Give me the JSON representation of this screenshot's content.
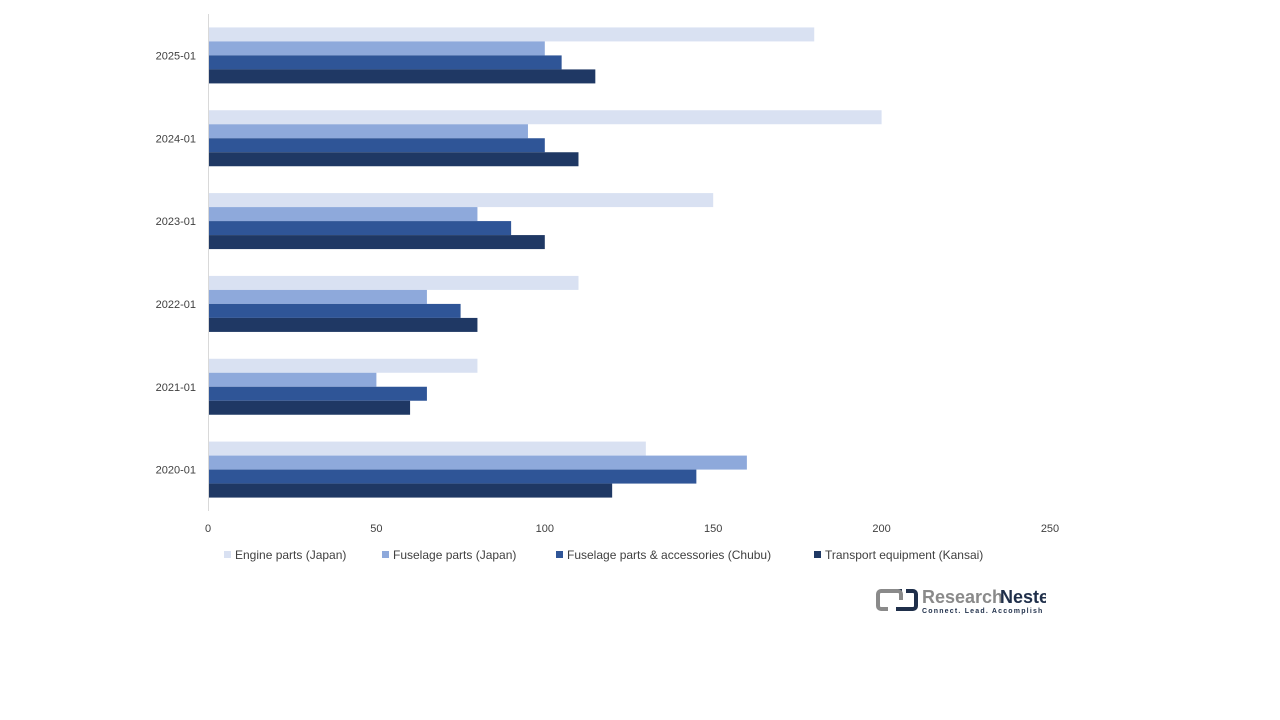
{
  "chart_data": {
    "type": "bar",
    "orientation": "horizontal",
    "categories": [
      "2020-01",
      "2021-01",
      "2022-01",
      "2023-01",
      "2024-01",
      "2025-01"
    ],
    "series": [
      {
        "name": "Engine parts (Japan)",
        "color": "#D9E1F2",
        "values": [
          130,
          80,
          110,
          150,
          200,
          180
        ]
      },
      {
        "name": "Fuselage parts (Japan)",
        "color": "#8EA9DB",
        "values": [
          160,
          50,
          65,
          80,
          95,
          100
        ]
      },
      {
        "name": "Fuselage parts & accessories (Chubu)",
        "color": "#2F5597",
        "values": [
          145,
          65,
          75,
          90,
          100,
          105
        ]
      },
      {
        "name": "Transport equipment (Kansai)",
        "color": "#1F3864",
        "values": [
          120,
          60,
          80,
          100,
          110,
          115
        ]
      }
    ],
    "xlim": [
      0,
      250
    ],
    "xticks": [
      "0",
      "50",
      "100",
      "150",
      "200",
      "250"
    ],
    "grid": false,
    "legend": "bottom"
  },
  "logo": {
    "name_part1": "Research",
    "name_part2": "Nester",
    "tagline": "Connect. Lead. Accomplish"
  }
}
